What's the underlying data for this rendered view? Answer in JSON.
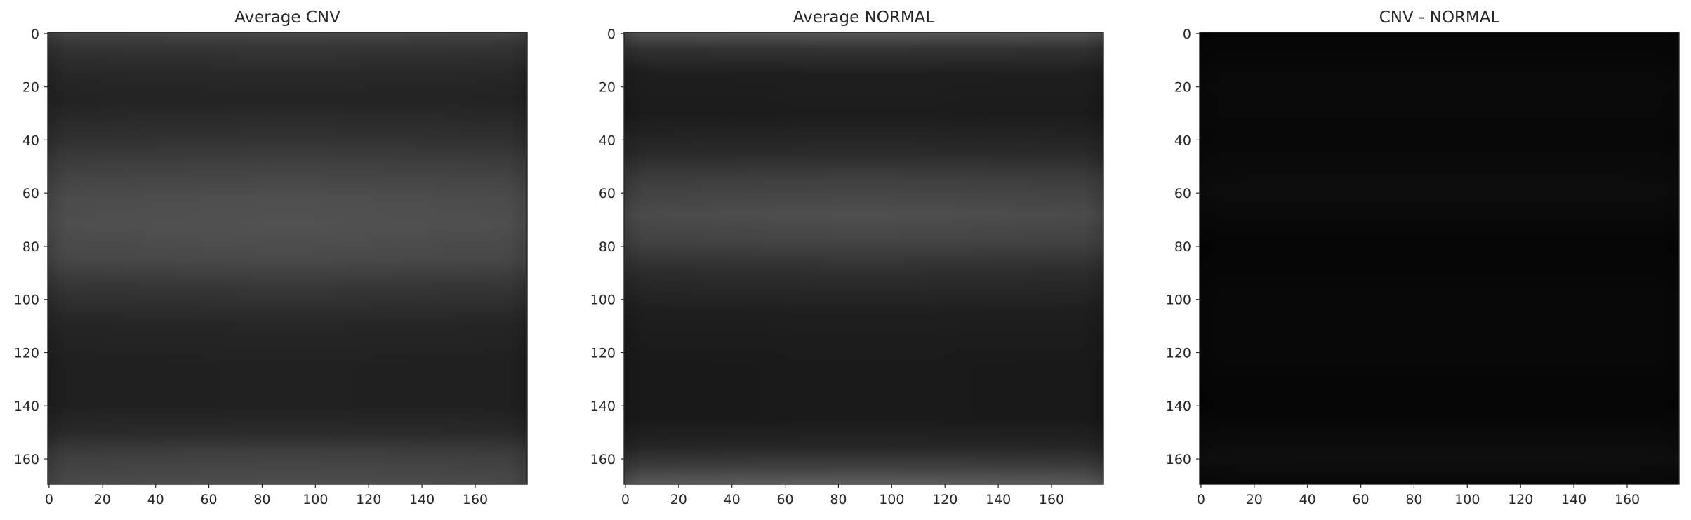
{
  "chart_data": [
    {
      "type": "heatmap",
      "title": "Average CNV",
      "colormap": "gray",
      "image_shape": [
        170,
        180
      ],
      "xticks": [
        0,
        20,
        40,
        60,
        80,
        100,
        120,
        140,
        160
      ],
      "yticks": [
        0,
        20,
        40,
        60,
        80,
        100,
        120,
        140,
        160
      ],
      "xlim": [
        0,
        179
      ],
      "ylim": [
        169,
        0
      ],
      "row_profile": [
        {
          "row": 0,
          "gray": 0.28
        },
        {
          "row": 5,
          "gray": 0.21
        },
        {
          "row": 15,
          "gray": 0.16
        },
        {
          "row": 25,
          "gray": 0.14
        },
        {
          "row": 40,
          "gray": 0.2
        },
        {
          "row": 50,
          "gray": 0.26
        },
        {
          "row": 62,
          "gray": 0.31
        },
        {
          "row": 72,
          "gray": 0.32
        },
        {
          "row": 85,
          "gray": 0.29
        },
        {
          "row": 95,
          "gray": 0.22
        },
        {
          "row": 110,
          "gray": 0.15
        },
        {
          "row": 125,
          "gray": 0.13
        },
        {
          "row": 140,
          "gray": 0.13
        },
        {
          "row": 150,
          "gray": 0.17
        },
        {
          "row": 158,
          "gray": 0.25
        },
        {
          "row": 169,
          "gray": 0.3
        }
      ]
    },
    {
      "type": "heatmap",
      "title": "Average NORMAL",
      "colormap": "gray",
      "image_shape": [
        170,
        180
      ],
      "xticks": [
        0,
        20,
        40,
        60,
        80,
        100,
        120,
        140,
        160
      ],
      "yticks": [
        0,
        20,
        40,
        60,
        80,
        100,
        120,
        140,
        160
      ],
      "xlim": [
        0,
        179
      ],
      "ylim": [
        169,
        0
      ],
      "row_profile": [
        {
          "row": 0,
          "gray": 0.33
        },
        {
          "row": 6,
          "gray": 0.2
        },
        {
          "row": 15,
          "gray": 0.12
        },
        {
          "row": 30,
          "gray": 0.11
        },
        {
          "row": 45,
          "gray": 0.17
        },
        {
          "row": 55,
          "gray": 0.25
        },
        {
          "row": 68,
          "gray": 0.31
        },
        {
          "row": 78,
          "gray": 0.27
        },
        {
          "row": 90,
          "gray": 0.18
        },
        {
          "row": 105,
          "gray": 0.12
        },
        {
          "row": 125,
          "gray": 0.1
        },
        {
          "row": 145,
          "gray": 0.1
        },
        {
          "row": 155,
          "gray": 0.15
        },
        {
          "row": 163,
          "gray": 0.25
        },
        {
          "row": 169,
          "gray": 0.36
        }
      ]
    },
    {
      "type": "heatmap",
      "title": "CNV - NORMAL",
      "colormap": "gray",
      "image_shape": [
        170,
        180
      ],
      "xticks": [
        0,
        20,
        40,
        60,
        80,
        100,
        120,
        140,
        160
      ],
      "yticks": [
        0,
        20,
        40,
        60,
        80,
        100,
        120,
        140,
        160
      ],
      "xlim": [
        0,
        179
      ],
      "ylim": [
        169,
        0
      ],
      "row_profile": [
        {
          "row": 0,
          "gray": 0.02
        },
        {
          "row": 20,
          "gray": 0.04
        },
        {
          "row": 40,
          "gray": 0.03
        },
        {
          "row": 60,
          "gray": 0.05
        },
        {
          "row": 80,
          "gray": 0.02
        },
        {
          "row": 100,
          "gray": 0.03
        },
        {
          "row": 120,
          "gray": 0.03
        },
        {
          "row": 140,
          "gray": 0.02
        },
        {
          "row": 150,
          "gray": 0.04
        },
        {
          "row": 160,
          "gray": 0.06
        },
        {
          "row": 169,
          "gray": 0.03
        }
      ]
    }
  ]
}
